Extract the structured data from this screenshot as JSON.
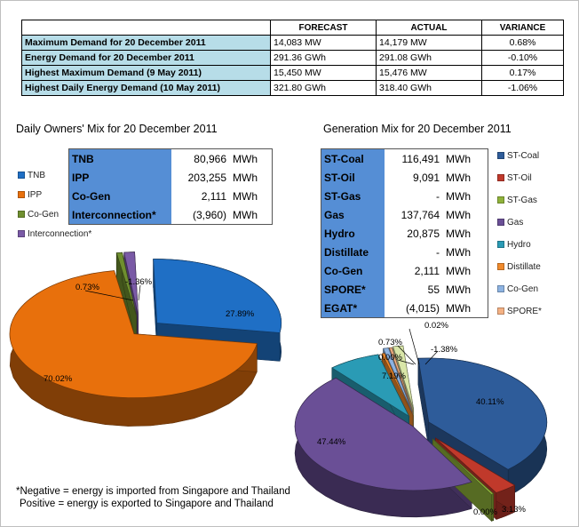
{
  "table": {
    "headers": [
      "",
      "FORECAST",
      "ACTUAL",
      "VARIANCE"
    ],
    "rows": [
      {
        "label": "Maximum Demand for 20 December 2011",
        "forecast": "14,083 MW",
        "actual": "14,179 MW",
        "variance": "0.68%"
      },
      {
        "label": "Energy Demand for 20 December 2011",
        "forecast": "291.36 GWh",
        "actual": "291.08 GWh",
        "variance": "-0.10%"
      },
      {
        "label": "Highest Maximum Demand (9 May 2011)",
        "forecast": "15,450 MW",
        "actual": "15,476 MW",
        "variance": "0.17%"
      },
      {
        "label": "Highest Daily Energy Demand (10 May 2011)",
        "forecast": "321.80 GWh",
        "actual": "318.40 GWh",
        "variance": "-1.06%"
      }
    ]
  },
  "owners": {
    "title": "Daily Owners' Mix for 20 December 2011",
    "rows": [
      {
        "name": "TNB",
        "value": "80,966",
        "unit": "MWh"
      },
      {
        "name": "IPP",
        "value": "203,255",
        "unit": "MWh"
      },
      {
        "name": "Co-Gen",
        "value": "2,111",
        "unit": "MWh"
      },
      {
        "name": "Interconnection*",
        "value": "(3,960)",
        "unit": "MWh"
      }
    ],
    "legend": [
      {
        "name": "TNB",
        "color": "#1f6fc5"
      },
      {
        "name": "IPP",
        "color": "#e8700c"
      },
      {
        "name": "Co-Gen",
        "color": "#6f8f2f"
      },
      {
        "name": "Interconnection*",
        "color": "#7a5aa6"
      }
    ]
  },
  "generation": {
    "title": "Generation Mix for 20 December 2011",
    "rows": [
      {
        "name": "ST-Coal",
        "value": "116,491",
        "unit": "MWh"
      },
      {
        "name": "ST-Oil",
        "value": "9,091",
        "unit": "MWh"
      },
      {
        "name": "ST-Gas",
        "value": "-",
        "unit": "MWh"
      },
      {
        "name": "Gas",
        "value": "137,764",
        "unit": "MWh"
      },
      {
        "name": "Hydro",
        "value": "20,875",
        "unit": "MWh"
      },
      {
        "name": "Distillate",
        "value": "-",
        "unit": "MWh"
      },
      {
        "name": "Co-Gen",
        "value": "2,111",
        "unit": "MWh"
      },
      {
        "name": "SPORE*",
        "value": "55",
        "unit": "MWh"
      },
      {
        "name": "EGAT*",
        "value": "(4,015)",
        "unit": "MWh"
      }
    ],
    "legend": [
      {
        "name": "ST-Coal",
        "color": "#2e5c9a"
      },
      {
        "name": "ST-Oil",
        "color": "#c0392b"
      },
      {
        "name": "ST-Gas",
        "color": "#8fb23a"
      },
      {
        "name": "Gas",
        "color": "#6a4f96"
      },
      {
        "name": "Hydro",
        "color": "#2a9bb5"
      },
      {
        "name": "Distillate",
        "color": "#f08a2c"
      },
      {
        "name": "Co-Gen",
        "color": "#8db3e2"
      },
      {
        "name": "SPORE*",
        "color": "#f4b183"
      }
    ]
  },
  "note": {
    "line1": "*Negative = energy is imported from Singapore and Thailand",
    "line2": "Positive = energy is exported to Singapore and Thailand"
  },
  "chart_data": [
    {
      "type": "pie",
      "title": "Daily Owners' Mix for 20 December 2011",
      "categories": [
        "TNB",
        "IPP",
        "Co-Gen",
        "Interconnection*"
      ],
      "values": [
        27.89,
        70.02,
        0.73,
        -1.36
      ],
      "labels": [
        "27.89%",
        "70.02%",
        "0.73%",
        "-1.36%"
      ],
      "colors": [
        "#1f6fc5",
        "#e8700c",
        "#6f8f2f",
        "#7a5aa6"
      ]
    },
    {
      "type": "pie",
      "title": "Generation Mix for 20 December 2011",
      "categories": [
        "ST-Coal",
        "ST-Oil",
        "ST-Gas",
        "Gas",
        "Hydro",
        "Distillate",
        "Co-Gen",
        "SPORE*",
        "EGAT*"
      ],
      "values": [
        40.11,
        3.13,
        0.0,
        47.44,
        7.19,
        0.0,
        0.73,
        0.02,
        -1.38
      ],
      "labels": [
        "40.11%",
        "3.13%",
        "0.00%",
        "47.44%",
        "7.19%",
        "0.00%",
        "0.73%",
        "0.02%",
        "-1.38%"
      ],
      "colors": [
        "#2e5c9a",
        "#c0392b",
        "#8fb23a",
        "#6a4f96",
        "#2a9bb5",
        "#f08a2c",
        "#8db3e2",
        "#f4b183",
        "#d9e6a8"
      ]
    }
  ]
}
